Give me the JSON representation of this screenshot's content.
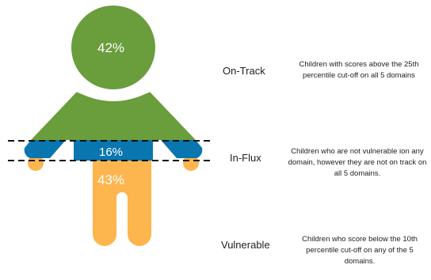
{
  "colors": {
    "on_track": "#6a9d3c",
    "in_flux": "#0a76b0",
    "vulnerable": "#fdb54e",
    "dash": "#111111",
    "background": "#ffffff"
  },
  "segments": {
    "on_track": {
      "percent": "42%",
      "label": "On-Track",
      "description": "Children with scores above the 25th percentile cut-off on all 5 domains"
    },
    "in_flux": {
      "percent": "16%",
      "label": "In-Flux",
      "description": "Children who are not vulnerable ion any domain, however they are not on track on all 5 domains."
    },
    "vulnerable": {
      "percent": "43%",
      "label": "Vulnerable",
      "description": "Children who score below the 10th percentile cut-off on any of the 5 domains."
    }
  }
}
